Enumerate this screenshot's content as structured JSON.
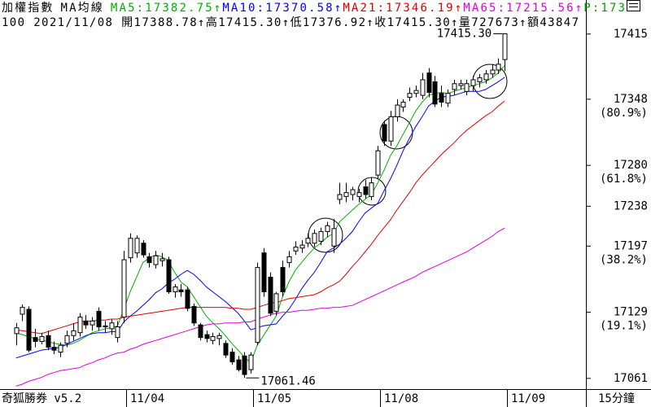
{
  "chart_data": {
    "type": "candlestick",
    "title": "加權指數",
    "subtitle": "MA均線",
    "extra": "P:173",
    "extra_color": "#00a000",
    "info": "100 2021/11/08 開17388.78↑高17415.30↑低17376.92↑收17415.30↑量727673↑額43847",
    "footer_left": "奇狐勝券 v5.2",
    "footer_right": "15分鐘",
    "ylim": [
      17050,
      17450
    ],
    "yticks": [
      17415,
      17348,
      17280,
      17238,
      17197,
      17129,
      17061
    ],
    "fib_levels": [
      {
        "level": 17348,
        "text": "(80.9%)"
      },
      {
        "level": 17280,
        "text": "(61.8%)"
      },
      {
        "level": 17197,
        "text": "(38.2%)"
      },
      {
        "level": 17129,
        "text": "(19.1%)"
      }
    ],
    "categories": [
      null,
      null,
      null,
      null,
      null,
      null,
      null,
      null,
      null,
      null,
      null,
      null,
      null,
      null,
      null,
      null,
      null,
      null,
      "11/04",
      null,
      null,
      null,
      null,
      null,
      null,
      null,
      null,
      null,
      null,
      null,
      null,
      null,
      null,
      null,
      null,
      null,
      null,
      null,
      "11/05",
      null,
      null,
      null,
      null,
      null,
      null,
      null,
      null,
      null,
      null,
      null,
      null,
      null,
      null,
      null,
      null,
      null,
      null,
      null,
      "11/08",
      null,
      null,
      null,
      null,
      null,
      null,
      null,
      null,
      null,
      null,
      null,
      null,
      null,
      null,
      null,
      null,
      null,
      null,
      null,
      "11/09"
    ],
    "open": [
      17107,
      17127,
      17132,
      17103,
      17099,
      17105,
      17093,
      17088,
      17097,
      17105,
      17108,
      17120,
      17116,
      17130,
      17114,
      17112,
      17103,
      17124,
      17185,
      17190,
      17200,
      17186,
      17178,
      17182,
      17183,
      17150,
      17152,
      17152,
      17135,
      17116,
      17106,
      17100,
      17102,
      17097,
      17088,
      17080,
      17084,
      17070,
      17098,
      17190,
      17165,
      17130,
      17175,
      17180,
      17192,
      17195,
      17200,
      17200,
      17202,
      17212,
      17197,
      17245,
      17248,
      17250,
      17248,
      17258,
      17248,
      17270,
      17322,
      17305,
      17330,
      17340,
      17350,
      17354,
      17352,
      17375,
      17366,
      17354,
      17344,
      17358,
      17362,
      17356,
      17362,
      17366,
      17368,
      17374,
      17378,
      17388.78,
      null
    ],
    "high": [
      17118,
      17137,
      17135,
      17112,
      17108,
      17110,
      17099,
      17098,
      17110,
      17118,
      17128,
      17126,
      17124,
      17134,
      17120,
      17122,
      17120,
      17192,
      17210,
      17208,
      17203,
      17190,
      17192,
      17190,
      17186,
      17158,
      17158,
      17155,
      17138,
      17118,
      17110,
      17108,
      17108,
      17100,
      17092,
      17084,
      17088,
      17088,
      17180,
      17195,
      17170,
      17150,
      17182,
      17192,
      17202,
      17203,
      17210,
      17214,
      17216,
      17222,
      17225,
      17262,
      17262,
      17258,
      17256,
      17265,
      17268,
      17300,
      17326,
      17336,
      17348,
      17348,
      17360,
      17362,
      17375,
      17380,
      17372,
      17362,
      17358,
      17368,
      17368,
      17368,
      17372,
      17374,
      17378,
      17384,
      17390,
      17415.3,
      null
    ],
    "low": [
      17095,
      17120,
      17088,
      17093,
      17096,
      17090,
      17086,
      17083,
      17093,
      17100,
      17104,
      17112,
      17110,
      17110,
      17108,
      17106,
      17098,
      17118,
      17180,
      17185,
      17185,
      17175,
      17174,
      17176,
      17148,
      17144,
      17145,
      17130,
      17115,
      17100,
      17098,
      17096,
      17095,
      17082,
      17075,
      17068,
      17061.46,
      17066,
      17095,
      17145,
      17125,
      17126,
      17145,
      17175,
      17188,
      17190,
      17196,
      17196,
      17198,
      17206,
      17190,
      17240,
      17242,
      17244,
      17242,
      17246,
      17244,
      17266,
      17300,
      17300,
      17325,
      17335,
      17346,
      17350,
      17348,
      17350,
      17340,
      17340,
      17340,
      17352,
      17358,
      17352,
      17356,
      17360,
      17364,
      17370,
      17374,
      17376.92,
      null
    ],
    "close": [
      17113,
      17134,
      17090,
      17099,
      17104,
      17093,
      17090,
      17095,
      17105,
      17110,
      17124,
      17116,
      17120,
      17114,
      17115,
      17118,
      17114,
      17183,
      17205,
      17205,
      17188,
      17180,
      17187,
      17184,
      17150,
      17155,
      17150,
      17133,
      17118,
      17103,
      17102,
      17104,
      17105,
      17085,
      17078,
      17070,
      17065,
      17085,
      17175,
      17150,
      17128,
      17148,
      17150,
      17186,
      17196,
      17198,
      17205,
      17210,
      17212,
      17218,
      17215,
      17250,
      17252,
      17255,
      17252,
      17250,
      17262,
      17295,
      17305,
      17330,
      17342,
      17345,
      17354,
      17357,
      17368,
      17355,
      17343,
      17345,
      17354,
      17364,
      17364,
      17364,
      17368,
      17370,
      17374,
      17378,
      17384,
      17415.3,
      null
    ],
    "high_value_labels": [
      null,
      null,
      null,
      null,
      null,
      null,
      null,
      null,
      null,
      null,
      null,
      null,
      null,
      null,
      null,
      null,
      null,
      null,
      null,
      null,
      null,
      null,
      null,
      null,
      null,
      null,
      null,
      null,
      null,
      null,
      null,
      null,
      null,
      null,
      null,
      null,
      null,
      null,
      null,
      null,
      null,
      null,
      null,
      null,
      null,
      null,
      null,
      null,
      null,
      null,
      null,
      null,
      null,
      null,
      null,
      null,
      null,
      null,
      null,
      null,
      null,
      null,
      null,
      null,
      null,
      null,
      null,
      null,
      null,
      null,
      null,
      null,
      null,
      null,
      null,
      null,
      null,
      "17415.30",
      null
    ],
    "low_value_labels": [
      null,
      null,
      null,
      null,
      null,
      null,
      null,
      null,
      null,
      null,
      null,
      null,
      null,
      null,
      null,
      null,
      null,
      null,
      null,
      null,
      null,
      null,
      null,
      null,
      null,
      null,
      null,
      null,
      null,
      null,
      null,
      null,
      null,
      null,
      null,
      null,
      "17061.46",
      null,
      null,
      null,
      null,
      null,
      null,
      null,
      null,
      null,
      null,
      null,
      null,
      null,
      null,
      null,
      null,
      null,
      null,
      null,
      null,
      null,
      null,
      null,
      null,
      null,
      null,
      null,
      null,
      null,
      null,
      null,
      null,
      null,
      null,
      null,
      null,
      null,
      null,
      null,
      null,
      null,
      null
    ],
    "ma_lines": [
      {
        "label": "MA5:17382.75↑",
        "color": "#00b000",
        "values": [
          17108,
          17106,
          17104,
          17102,
          17100,
          17099,
          17097,
          17096,
          17095,
          17097,
          17100,
          17104,
          17108,
          17110,
          17112,
          17113,
          17115,
          17132,
          17150,
          17165,
          17180,
          17185,
          17188,
          17186,
          17182,
          17170,
          17160,
          17155,
          17145,
          17135,
          17125,
          17118,
          17112,
          17105,
          17097,
          17090,
          17083,
          17077,
          17095,
          17105,
          17115,
          17125,
          17145,
          17160,
          17172,
          17180,
          17188,
          17195,
          17200,
          17206,
          17210,
          17222,
          17228,
          17234,
          17240,
          17245,
          17250,
          17262,
          17275,
          17290,
          17300,
          17312,
          17324,
          17336,
          17345,
          17352,
          17354,
          17355,
          17354,
          17356,
          17358,
          17360,
          17362,
          17364,
          17366,
          17370,
          17375,
          17382.75,
          null
        ]
      },
      {
        "label": "MA10:17370.58↑",
        "color": "#0000ff",
        "values": [
          17082,
          17084,
          17086,
          17088,
          17090,
          17091,
          17092,
          17093,
          17096,
          17099,
          17102,
          17105,
          17107,
          17108,
          17108,
          17109,
          17109,
          17119,
          17125,
          17130,
          17136,
          17142,
          17149,
          17153,
          17159,
          17163,
          17168,
          17172,
          17168,
          17162,
          17155,
          17150,
          17145,
          17140,
          17134,
          17128,
          17120,
          17111,
          17113,
          17115,
          17116,
          17117,
          17125,
          17132,
          17142,
          17153,
          17162,
          17170,
          17180,
          17191,
          17195,
          17199,
          17205,
          17212,
          17222,
          17231,
          17236,
          17241,
          17254,
          17266,
          17280,
          17295,
          17308,
          17320,
          17330,
          17341,
          17346,
          17350,
          17351,
          17352,
          17354,
          17356,
          17356,
          17356,
          17358,
          17362,
          17366,
          17370.58,
          null
        ]
      },
      {
        "label": "MA21:17346.19↑",
        "color": "#e00000",
        "values": [
          17111,
          17110,
          17109,
          17108,
          17107,
          17109,
          17111,
          17113,
          17115,
          17117,
          17119,
          17120,
          17120,
          17121,
          17121,
          17122,
          17122,
          17124,
          17125,
          17126,
          17127,
          17128,
          17129,
          17130,
          17131,
          17132,
          17133,
          17134,
          17134,
          17134,
          17134,
          17134,
          17134,
          17134,
          17133,
          17133,
          17132,
          17132,
          17134,
          17136,
          17138,
          17139,
          17141,
          17143,
          17144,
          17145,
          17146,
          17147,
          17150,
          17154,
          17157,
          17161,
          17168,
          17176,
          17183,
          17191,
          17199,
          17208,
          17216,
          17224,
          17234,
          17243,
          17252,
          17262,
          17270,
          17277,
          17284,
          17291,
          17297,
          17303,
          17310,
          17316,
          17321,
          17326,
          17331,
          17335,
          17341,
          17346.19,
          null
        ]
      },
      {
        "label": "MA65:17215.56↑",
        "color": "#e000e0",
        "values": [
          17053,
          17055,
          17058,
          17060,
          17062,
          17065,
          17067,
          17069,
          17070,
          17071,
          17072,
          17075,
          17077,
          17080,
          17082,
          17085,
          17087,
          17088,
          17091,
          17093,
          17096,
          17098,
          17100,
          17102,
          17104,
          17106,
          17108,
          17110,
          17112,
          17114,
          17116,
          17117,
          17117,
          17118,
          17118,
          17118,
          17119,
          17119,
          17122,
          17124,
          17126,
          17128,
          17129,
          17129,
          17130,
          17131,
          17131,
          17132,
          17133,
          17133,
          17134,
          17134,
          17135,
          17136,
          17139,
          17142,
          17145,
          17148,
          17151,
          17154,
          17157,
          17160,
          17163,
          17166,
          17170,
          17173,
          17176,
          17179,
          17182,
          17185,
          17188,
          17191,
          17195,
          17199,
          17203,
          17207,
          17212,
          17215.56,
          null
        ]
      }
    ]
  }
}
